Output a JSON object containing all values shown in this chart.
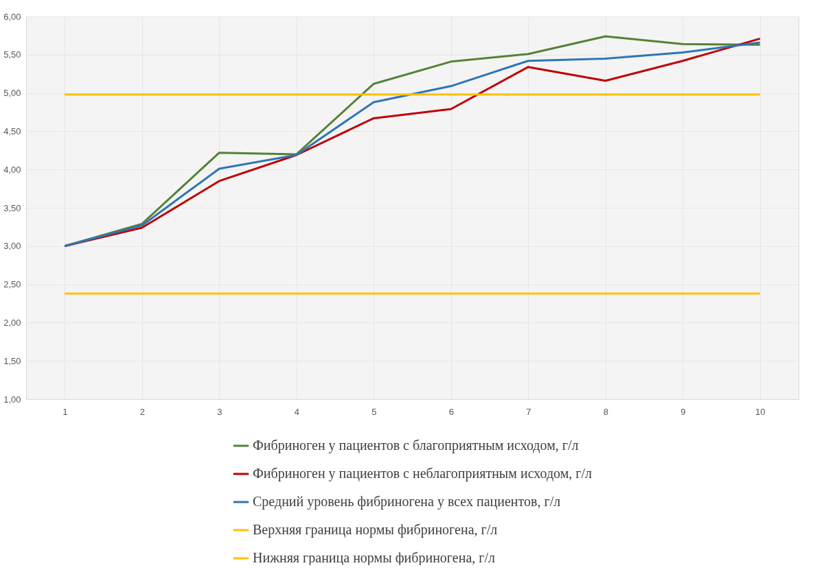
{
  "chart_data": {
    "type": "line",
    "categories": [
      "1",
      "2",
      "3",
      "4",
      "5",
      "6",
      "7",
      "8",
      "9",
      "10"
    ],
    "ylim": [
      1,
      6
    ],
    "yticks": [
      {
        "value": 1,
        "label": "1,00"
      },
      {
        "value": 1.5,
        "label": "1,50"
      },
      {
        "value": 2,
        "label": "2,00"
      },
      {
        "value": 2.5,
        "label": "2,50"
      },
      {
        "value": 3,
        "label": "3,00"
      },
      {
        "value": 3.5,
        "label": "3,50"
      },
      {
        "value": 4,
        "label": "4,00"
      },
      {
        "value": 4.5,
        "label": "4,50"
      },
      {
        "value": 5,
        "label": "5,00"
      },
      {
        "value": 5.5,
        "label": "5,50"
      },
      {
        "value": 6,
        "label": "6,00"
      }
    ],
    "grid": true,
    "legend": "bottom",
    "marker": "none",
    "line_style": "solid",
    "series": [
      {
        "name": "Фибриноген у пациентов с благоприятным исходом, г/л",
        "color": "#548235",
        "values": [
          3.0,
          3.29,
          4.22,
          4.2,
          5.12,
          5.41,
          5.51,
          5.74,
          5.64,
          5.63
        ]
      },
      {
        "name": "Фибриноген у пациентов с неблагоприятным исходом, г/л",
        "color": "#c00000",
        "values": [
          3.0,
          3.24,
          3.85,
          4.19,
          4.67,
          4.79,
          5.34,
          5.16,
          5.42,
          5.71
        ]
      },
      {
        "name": "Средний уровень фибриногена у всех пациентов, г/л",
        "color": "#2e75b6",
        "values": [
          3.0,
          3.27,
          4.01,
          4.19,
          4.88,
          5.09,
          5.42,
          5.45,
          5.53,
          5.66
        ]
      },
      {
        "name": "Верхняя граница нормы фибриногена, г/л",
        "color": "#ffc000",
        "values": [
          4.98,
          4.98,
          4.98,
          4.98,
          4.98,
          4.98,
          4.98,
          4.98,
          4.98,
          4.98
        ]
      },
      {
        "name": "Нижняя граница нормы фибриногена, г/л",
        "color": "#ffc000",
        "values": [
          2.38,
          2.38,
          2.38,
          2.38,
          2.38,
          2.38,
          2.38,
          2.38,
          2.38,
          2.38
        ]
      }
    ]
  }
}
